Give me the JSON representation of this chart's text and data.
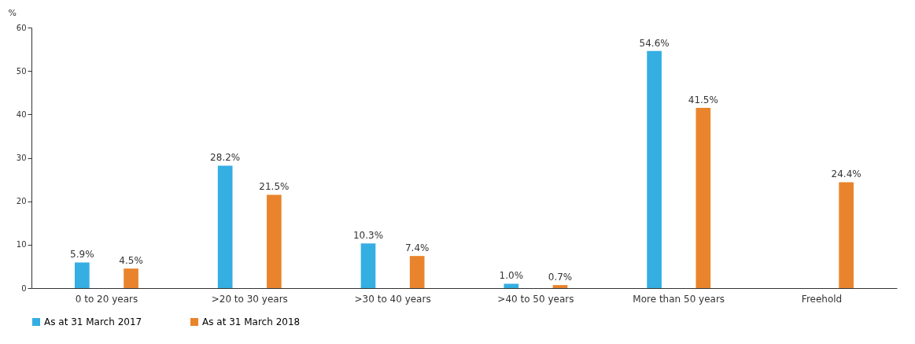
{
  "chart_data": {
    "type": "bar",
    "ylabel": "%",
    "categories": [
      "0 to 20 years",
      ">20 to 30 years",
      ">30 to 40 years",
      ">40 to 50 years",
      "More than 50 years",
      "Freehold"
    ],
    "series": [
      {
        "name": "As at 31 March 2017",
        "color": "#35aee2",
        "values": [
          5.9,
          28.2,
          10.3,
          1.0,
          54.6,
          null
        ],
        "value_labels": [
          "5.9%",
          "28.2%",
          "10.3%",
          "1.0%",
          "54.6%",
          null
        ]
      },
      {
        "name": "As at 31 March 2018",
        "color": "#e9842c",
        "values": [
          4.5,
          21.5,
          7.4,
          0.7,
          41.5,
          24.4
        ],
        "value_labels": [
          "4.5%",
          "21.5%",
          "7.4%",
          "0.7%",
          "41.5%",
          "24.4%"
        ]
      }
    ],
    "ylim": [
      0,
      60
    ],
    "yticks": [
      0,
      10,
      20,
      30,
      40,
      50,
      60
    ],
    "grid": false,
    "legend": "bottom"
  }
}
